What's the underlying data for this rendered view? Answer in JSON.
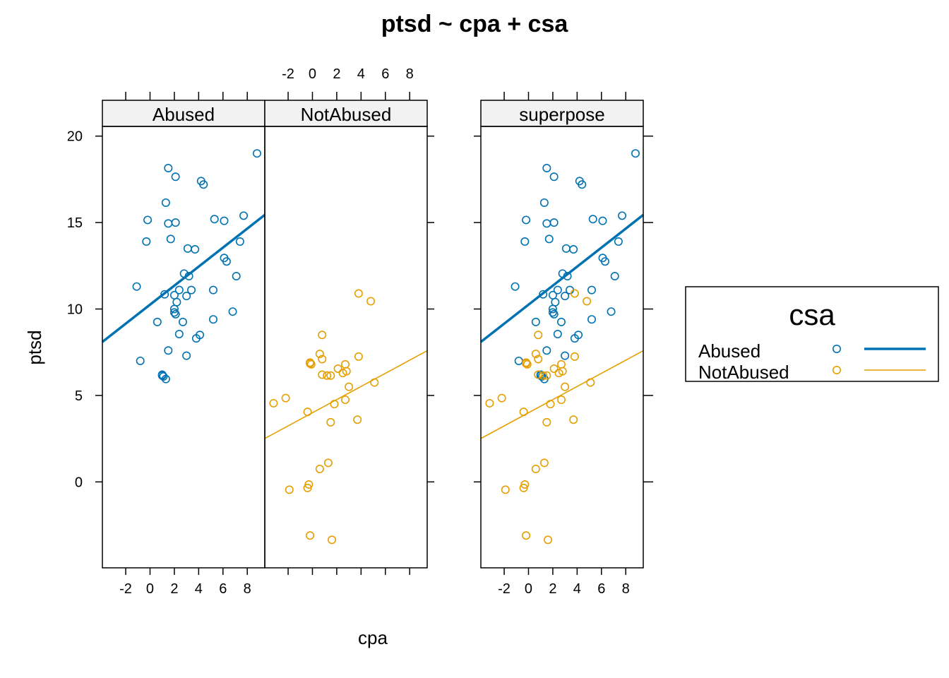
{
  "chart_data": {
    "type": "scatter",
    "title": "ptsd ~ cpa + csa",
    "xlabel": "cpa",
    "ylabel": "ptsd",
    "xlim": [
      -3.92,
      9.44
    ],
    "ylim": [
      -4.97,
      20.56
    ],
    "x_ticks": [
      -2,
      0,
      2,
      4,
      6,
      8
    ],
    "y_ticks": [
      0,
      5,
      10,
      15,
      20
    ],
    "panels": [
      "Abused",
      "NotAbused",
      "superpose"
    ],
    "legend": {
      "title": "csa",
      "placement": "right",
      "entries": [
        "Abused",
        "NotAbused"
      ]
    },
    "colors": {
      "Abused": "#0072b2",
      "NotAbused": "#e69f00"
    },
    "series": [
      {
        "name": "Abused",
        "fit": {
          "intercept": 10.25,
          "slope": 0.55
        },
        "points": [
          [
            -1.1,
            11.3
          ],
          [
            -0.8,
            7.0
          ],
          [
            -0.3,
            13.9
          ],
          [
            -0.2,
            15.15
          ],
          [
            0.6,
            9.25
          ],
          [
            1.0,
            6.15
          ],
          [
            1.0,
            6.2
          ],
          [
            1.1,
            6.1
          ],
          [
            1.2,
            10.85
          ],
          [
            1.3,
            16.15
          ],
          [
            1.3,
            5.95
          ],
          [
            1.5,
            7.6
          ],
          [
            1.5,
            14.95
          ],
          [
            1.5,
            18.15
          ],
          [
            1.7,
            14.05
          ],
          [
            2.0,
            10.8
          ],
          [
            2.0,
            9.8
          ],
          [
            2.0,
            10.0
          ],
          [
            2.1,
            9.7
          ],
          [
            2.1,
            15.0
          ],
          [
            2.1,
            17.65
          ],
          [
            2.2,
            10.4
          ],
          [
            2.4,
            11.1
          ],
          [
            2.4,
            8.55
          ],
          [
            2.7,
            9.25
          ],
          [
            2.8,
            12.05
          ],
          [
            3.0,
            10.75
          ],
          [
            3.0,
            7.3
          ],
          [
            3.1,
            13.5
          ],
          [
            3.2,
            11.9
          ],
          [
            3.4,
            11.1
          ],
          [
            3.7,
            13.45
          ],
          [
            3.8,
            8.3
          ],
          [
            4.1,
            8.5
          ],
          [
            4.2,
            17.4
          ],
          [
            4.4,
            17.2
          ],
          [
            5.2,
            11.1
          ],
          [
            5.2,
            9.4
          ],
          [
            5.3,
            15.2
          ],
          [
            6.1,
            15.1
          ],
          [
            6.1,
            12.95
          ],
          [
            6.3,
            12.75
          ],
          [
            6.8,
            9.85
          ],
          [
            7.1,
            11.9
          ],
          [
            7.4,
            13.9
          ],
          [
            7.7,
            15.4
          ],
          [
            8.8,
            19.0
          ]
        ]
      },
      {
        "name": "NotAbused",
        "fit": {
          "intercept": 4.0,
          "slope": 0.38
        },
        "points": [
          [
            -3.2,
            4.55
          ],
          [
            -2.2,
            4.85
          ],
          [
            -1.9,
            -0.45
          ],
          [
            -0.4,
            -0.35
          ],
          [
            -0.3,
            -0.15
          ],
          [
            -0.4,
            4.05
          ],
          [
            -0.2,
            6.9
          ],
          [
            -0.1,
            6.8
          ],
          [
            -0.2,
            6.85
          ],
          [
            -0.2,
            -3.1
          ],
          [
            0.6,
            7.4
          ],
          [
            0.6,
            0.75
          ],
          [
            0.8,
            8.5
          ],
          [
            0.8,
            7.1
          ],
          [
            0.8,
            6.2
          ],
          [
            1.2,
            6.15
          ],
          [
            1.3,
            1.1
          ],
          [
            1.5,
            6.15
          ],
          [
            1.5,
            3.45
          ],
          [
            1.6,
            -3.35
          ],
          [
            1.8,
            4.5
          ],
          [
            2.1,
            6.55
          ],
          [
            2.5,
            6.3
          ],
          [
            2.7,
            6.8
          ],
          [
            2.7,
            4.75
          ],
          [
            2.8,
            6.4
          ],
          [
            3.0,
            5.5
          ],
          [
            3.7,
            3.6
          ],
          [
            3.8,
            7.25
          ],
          [
            3.8,
            10.9
          ],
          [
            4.8,
            10.45
          ],
          [
            5.1,
            5.75
          ]
        ]
      }
    ]
  }
}
